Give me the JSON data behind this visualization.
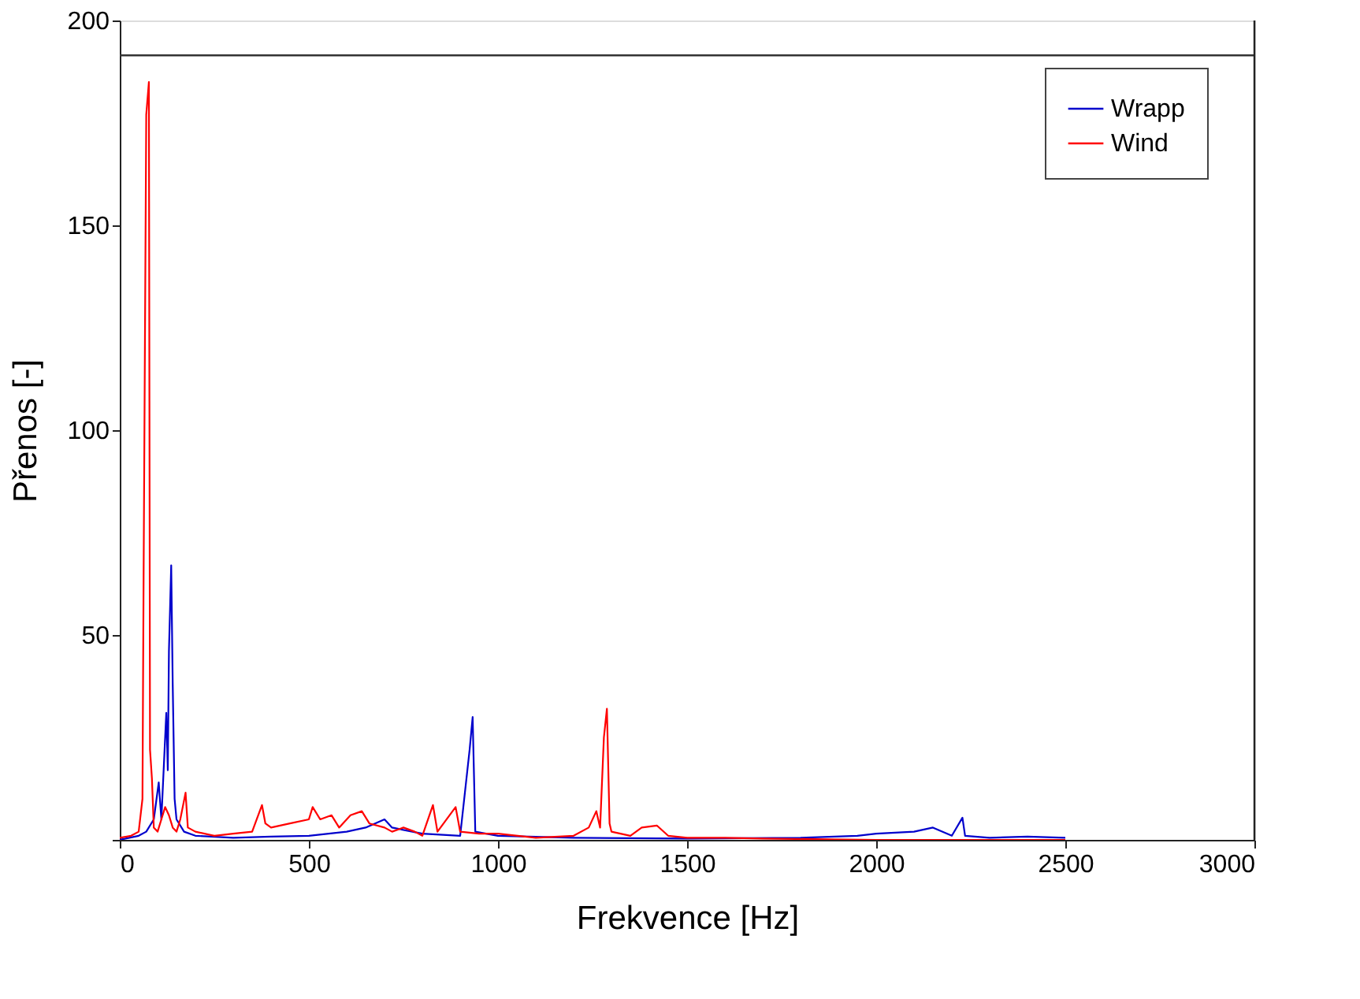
{
  "chart_data": {
    "type": "line",
    "xlabel": "Frekvence [Hz]",
    "ylabel": "Přenos [-]",
    "xlim": [
      0,
      3000
    ],
    "xticks": [
      0,
      500,
      1000,
      1500,
      2000,
      2500,
      3000
    ],
    "ylim": [
      0,
      200
    ],
    "yticks": [
      {
        "value": 0,
        "label": null
      },
      50,
      100,
      150,
      200
    ],
    "legend": "top right",
    "grid": false,
    "marker": "none",
    "line_style": "solid",
    "ref_lines": [
      {
        "axis": "y",
        "value": 191.5,
        "label": null,
        "color": "#333333"
      }
    ],
    "series": [
      {
        "name": "Wrapp",
        "color": "#0000cc",
        "x": [
          0,
          50,
          70,
          90,
          103,
          110,
          123,
          127,
          130,
          136,
          140,
          145,
          150,
          170,
          200,
          300,
          400,
          500,
          600,
          650,
          700,
          720,
          800,
          900,
          925,
          933,
          940,
          1000,
          1200,
          1500,
          1800,
          1950,
          2000,
          2100,
          2150,
          2200,
          2228,
          2235,
          2300,
          2400,
          2500
        ],
        "values": [
          0,
          1,
          2,
          5,
          14,
          5,
          31,
          17,
          46,
          67,
          38,
          10,
          5,
          2,
          1,
          0.5,
          0.8,
          1,
          2,
          3,
          5,
          3,
          1.5,
          1,
          22,
          30,
          2,
          1,
          0.5,
          0.3,
          0.5,
          1,
          1.5,
          2,
          3,
          1,
          5.4,
          1,
          0.5,
          0.8,
          0.5
        ]
      },
      {
        "name": "Wind",
        "color": "#ff0000",
        "x": [
          0,
          30,
          50,
          60,
          63,
          70,
          77,
          80,
          85,
          90,
          100,
          110,
          120,
          130,
          140,
          150,
          160,
          174,
          180,
          200,
          250,
          300,
          350,
          376,
          385,
          400,
          450,
          500,
          510,
          530,
          560,
          580,
          610,
          640,
          660,
          700,
          720,
          750,
          780,
          800,
          828,
          840,
          888,
          900,
          950,
          1000,
          1100,
          1200,
          1240,
          1260,
          1270,
          1280,
          1288,
          1295,
          1300,
          1350,
          1380,
          1420,
          1450,
          1500,
          1600,
          1700,
          2000,
          2500
        ],
        "values": [
          0.5,
          1,
          2,
          10,
          64,
          177,
          185,
          22,
          15,
          3,
          2,
          5,
          8,
          6,
          3,
          2,
          5,
          11.5,
          3,
          2,
          1,
          1.5,
          2,
          8.5,
          4,
          3,
          4,
          5,
          8,
          5,
          6,
          3,
          6,
          7,
          4,
          3,
          2,
          3,
          2,
          1,
          8.5,
          2,
          8,
          2,
          1.5,
          1.5,
          0.5,
          1,
          3,
          7,
          3,
          25,
          32,
          4,
          2,
          1,
          3,
          3.5,
          1,
          0.5,
          0.5,
          0.3,
          0,
          0
        ]
      }
    ]
  }
}
